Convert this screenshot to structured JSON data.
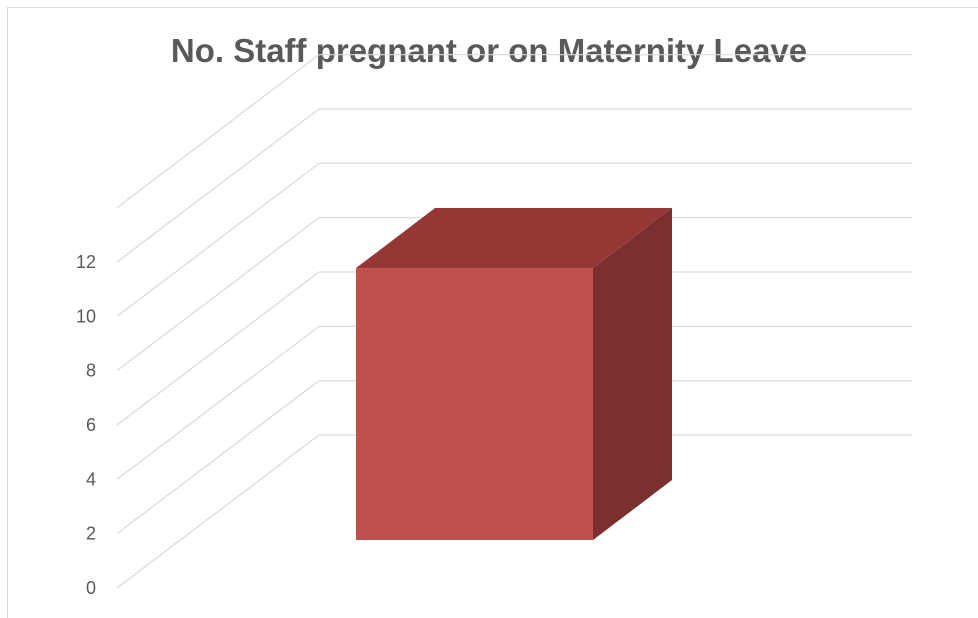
{
  "chart_data": {
    "type": "bar",
    "title": "No. Staff pregnant or on Maternity Leave",
    "categories": [
      ""
    ],
    "values": [
      11
    ],
    "xlabel": "",
    "ylabel": "",
    "ylim": [
      0,
      12
    ],
    "yticks": [
      0,
      2,
      4,
      6,
      8,
      10,
      12
    ],
    "grid": true,
    "legend": "none",
    "style": "3d-column",
    "colors": {
      "front": "#C0504D",
      "top": "#953735",
      "side": "#7B2F2E",
      "grid": "#d9d9d9",
      "text": "#595959"
    }
  }
}
